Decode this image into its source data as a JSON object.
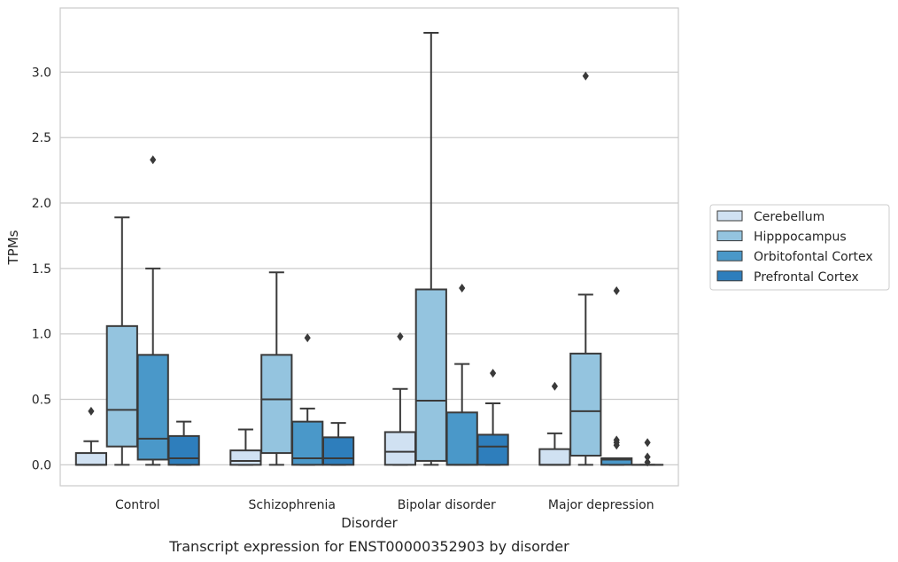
{
  "chart_data": {
    "type": "box",
    "caption": "Transcript expression for ENST00000352903 by disorder",
    "xlabel": "Disorder",
    "ylabel": "TPMs",
    "ylim": [
      -0.16,
      3.49
    ],
    "yticks": [
      "0.0",
      "0.5",
      "1.0",
      "1.5",
      "2.0",
      "2.5",
      "3.0"
    ],
    "grid": "horizontal",
    "legend_position": "right",
    "categories": [
      "Control",
      "Schizophrenia",
      "Bipolar disorder",
      "Major depression"
    ],
    "series": [
      {
        "name": "Cerebellum",
        "color": "#d0e1f2",
        "boxes": [
          {
            "whisker_low": 0.0,
            "q1": 0.0,
            "median": 0.0,
            "q3": 0.09,
            "whisker_high": 0.18,
            "outliers": [
              0.41
            ]
          },
          {
            "whisker_low": 0.0,
            "q1": 0.0,
            "median": 0.03,
            "q3": 0.11,
            "whisker_high": 0.27,
            "outliers": []
          },
          {
            "whisker_low": 0.0,
            "q1": 0.0,
            "median": 0.1,
            "q3": 0.25,
            "whisker_high": 0.58,
            "outliers": [
              0.98
            ]
          },
          {
            "whisker_low": 0.0,
            "q1": 0.0,
            "median": 0.0,
            "q3": 0.12,
            "whisker_high": 0.24,
            "outliers": [
              0.6
            ]
          }
        ]
      },
      {
        "name": "Hipppocampus",
        "color": "#94c4df",
        "boxes": [
          {
            "whisker_low": 0.0,
            "q1": 0.14,
            "median": 0.42,
            "q3": 1.06,
            "whisker_high": 1.89,
            "outliers": []
          },
          {
            "whisker_low": 0.0,
            "q1": 0.09,
            "median": 0.5,
            "q3": 0.84,
            "whisker_high": 1.47,
            "outliers": []
          },
          {
            "whisker_low": 0.0,
            "q1": 0.03,
            "median": 0.49,
            "q3": 1.34,
            "whisker_high": 3.3,
            "outliers": []
          },
          {
            "whisker_low": 0.0,
            "q1": 0.07,
            "median": 0.41,
            "q3": 0.85,
            "whisker_high": 1.3,
            "outliers": [
              2.97
            ]
          }
        ]
      },
      {
        "name": "Orbitofontal Cortex",
        "color": "#4a98c9",
        "boxes": [
          {
            "whisker_low": 0.0,
            "q1": 0.04,
            "median": 0.2,
            "q3": 0.84,
            "whisker_high": 1.5,
            "outliers": [
              2.33
            ]
          },
          {
            "whisker_low": 0.0,
            "q1": 0.0,
            "median": 0.05,
            "q3": 0.33,
            "whisker_high": 0.43,
            "outliers": [
              0.97
            ]
          },
          {
            "whisker_low": 0.0,
            "q1": 0.0,
            "median": 0.0,
            "q3": 0.4,
            "whisker_high": 0.77,
            "outliers": [
              1.35
            ]
          },
          {
            "whisker_low": 0.0,
            "q1": 0.0,
            "median": 0.04,
            "q3": 0.05,
            "whisker_high": 0.05,
            "outliers": [
              0.15,
              0.17,
              0.19,
              1.33
            ]
          }
        ]
      },
      {
        "name": "Prefrontal Cortex",
        "color": "#2e7ebc",
        "boxes": [
          {
            "whisker_low": 0.0,
            "q1": 0.0,
            "median": 0.05,
            "q3": 0.22,
            "whisker_high": 0.33,
            "outliers": []
          },
          {
            "whisker_low": 0.0,
            "q1": 0.0,
            "median": 0.05,
            "q3": 0.21,
            "whisker_high": 0.32,
            "outliers": []
          },
          {
            "whisker_low": 0.0,
            "q1": 0.0,
            "median": 0.14,
            "q3": 0.23,
            "whisker_high": 0.47,
            "outliers": [
              0.7
            ]
          },
          {
            "whisker_low": 0.0,
            "q1": 0.0,
            "median": 0.0,
            "q3": 0.0,
            "whisker_high": 0.0,
            "outliers": [
              0.02,
              0.06,
              0.17
            ]
          }
        ]
      }
    ]
  }
}
